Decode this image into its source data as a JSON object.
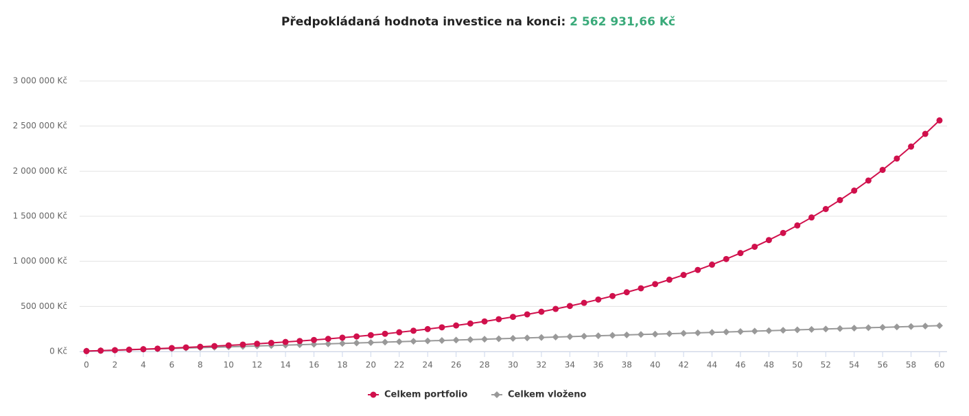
{
  "chart_data": {
    "type": "line",
    "title": "Předpokládaná hodnota investice na konci:",
    "subtitle": "2 562 931,66 Kč",
    "subtitle_color": "#3aaa7a",
    "x": [
      0,
      1,
      2,
      3,
      4,
      5,
      6,
      7,
      8,
      9,
      10,
      11,
      12,
      13,
      14,
      15,
      16,
      17,
      18,
      19,
      20,
      21,
      22,
      23,
      24,
      25,
      26,
      27,
      28,
      29,
      30,
      31,
      32,
      33,
      34,
      35,
      36,
      37,
      38,
      39,
      40,
      41,
      42,
      43,
      44,
      45,
      46,
      47,
      48,
      49,
      50,
      51,
      52,
      53,
      54,
      55,
      56,
      57,
      58,
      59,
      60
    ],
    "series": [
      {
        "name": "Celkem portfolio",
        "color": "#d0104c",
        "marker": "circle",
        "values": [
          4527,
          9326,
          14413,
          19805,
          25521,
          31579,
          38001,
          44808,
          52024,
          59673,
          67780,
          76375,
          85484,
          95140,
          105376,
          116226,
          127726,
          139917,
          152840,
          166537,
          181056,
          196448,
          212761,
          230054,
          248384,
          267815,
          288412,
          310244,
          333386,
          357916,
          383918,
          411481,
          440696,
          471666,
          504493,
          539289,
          576174,
          615271,
          656714,
          700645,
          747211,
          796571,
          848892,
          904353,
          963142,
          1025457,
          1091512,
          1161530,
          1235748,
          1314419,
          1397813,
          1486209,
          1579908,
          1679230,
          1784509,
          1896105,
          2014398,
          2139789,
          2272704,
          2413591,
          2562931.66
        ]
      },
      {
        "name": "Celkem vloženo",
        "color": "#999999",
        "marker": "diamond",
        "values": [
          4700,
          9400,
          14100,
          18800,
          23500,
          28200,
          32900,
          37600,
          42300,
          47000,
          51700,
          56400,
          61100,
          65800,
          70500,
          75200,
          79900,
          84600,
          89300,
          94000,
          98700,
          103400,
          108100,
          112800,
          117500,
          122200,
          126900,
          131600,
          136300,
          141000,
          145700,
          150400,
          155100,
          159800,
          164500,
          169200,
          173900,
          178600,
          183300,
          188000,
          192700,
          197400,
          202100,
          206800,
          211500,
          216200,
          220900,
          225600,
          230300,
          235000,
          239700,
          244400,
          249100,
          253800,
          258500,
          263200,
          267900,
          272600,
          277300,
          282000,
          286700
        ]
      }
    ],
    "xlim": [
      0,
      60
    ],
    "xticks": [
      0,
      2,
      4,
      6,
      8,
      10,
      12,
      14,
      16,
      18,
      20,
      22,
      24,
      26,
      28,
      30,
      32,
      34,
      36,
      38,
      40,
      42,
      44,
      46,
      48,
      50,
      52,
      54,
      56,
      58,
      60
    ],
    "ylim": [
      0,
      3000000
    ],
    "yticks": [
      {
        "value": 0,
        "label": "0 Kč"
      },
      {
        "value": 500000,
        "label": "500 000 Kč"
      },
      {
        "value": 1000000,
        "label": "1 000 000 Kč"
      },
      {
        "value": 1500000,
        "label": "1 500 000 Kč"
      },
      {
        "value": 2000000,
        "label": "2 000 000 Kč"
      },
      {
        "value": 2500000,
        "label": "2 500 000 Kč"
      },
      {
        "value": 3000000,
        "label": "3 000 000 Kč"
      }
    ],
    "grid": true,
    "legend": "bottom"
  }
}
